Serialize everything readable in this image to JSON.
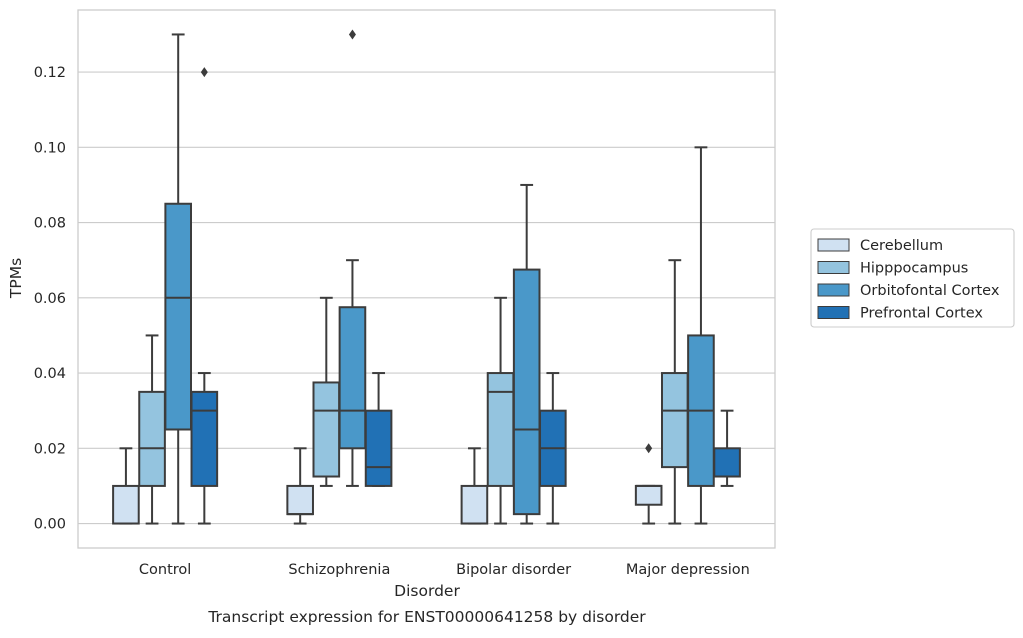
{
  "chart_data": {
    "type": "box",
    "title": "",
    "caption": "Transcript expression for ENST00000641258 by disorder",
    "xlabel": "Disorder",
    "ylabel": "TPMs",
    "ylim": [
      -0.0065,
      0.1365
    ],
    "yticks": [
      "0.00",
      "0.02",
      "0.04",
      "0.06",
      "0.08",
      "0.10",
      "0.12"
    ],
    "ytick_values": [
      0,
      0.02,
      0.04,
      0.06,
      0.08,
      0.1,
      0.12
    ],
    "grid": "horizontal",
    "legend_position": "right",
    "categories": [
      "Control",
      "Schizophrenia",
      "Bipolar disorder",
      "Major depression"
    ],
    "series": [
      {
        "name": "Cerebellum",
        "color": "#d0e1f2",
        "boxes": [
          {
            "whislo": 0.0,
            "q1": 0.0,
            "med": 0.0,
            "q3": 0.01,
            "whishi": 0.02,
            "fliers": []
          },
          {
            "whislo": 0.0,
            "q1": 0.0025,
            "med": 0.0025,
            "q3": 0.01,
            "whishi": 0.02,
            "fliers": []
          },
          {
            "whislo": 0.0,
            "q1": 0.0,
            "med": 0.0,
            "q3": 0.01,
            "whishi": 0.02,
            "fliers": []
          },
          {
            "whislo": 0.0,
            "q1": 0.005,
            "med": 0.01,
            "q3": 0.01,
            "whishi": 0.01,
            "fliers": [
              0.02
            ]
          }
        ]
      },
      {
        "name": "Hipppocampus",
        "color": "#94c4df",
        "boxes": [
          {
            "whislo": 0.0,
            "q1": 0.01,
            "med": 0.02,
            "q3": 0.035,
            "whishi": 0.05,
            "fliers": []
          },
          {
            "whislo": 0.01,
            "q1": 0.0125,
            "med": 0.03,
            "q3": 0.0375,
            "whishi": 0.06,
            "fliers": []
          },
          {
            "whislo": 0.0,
            "q1": 0.01,
            "med": 0.035,
            "q3": 0.04,
            "whishi": 0.06,
            "fliers": []
          },
          {
            "whislo": 0.0,
            "q1": 0.015,
            "med": 0.03,
            "q3": 0.04,
            "whishi": 0.07,
            "fliers": []
          }
        ]
      },
      {
        "name": "Orbitofontal Cortex",
        "color": "#4a98c9",
        "boxes": [
          {
            "whislo": 0.0,
            "q1": 0.025,
            "med": 0.06,
            "q3": 0.085,
            "whishi": 0.13,
            "fliers": []
          },
          {
            "whislo": 0.01,
            "q1": 0.02,
            "med": 0.03,
            "q3": 0.0575,
            "whishi": 0.07,
            "fliers": [
              0.13
            ]
          },
          {
            "whislo": 0.0,
            "q1": 0.0025,
            "med": 0.025,
            "q3": 0.0675,
            "whishi": 0.09,
            "fliers": []
          },
          {
            "whislo": 0.0,
            "q1": 0.01,
            "med": 0.03,
            "q3": 0.05,
            "whishi": 0.1,
            "fliers": []
          }
        ]
      },
      {
        "name": "Prefrontal Cortex",
        "color": "#2171b5",
        "boxes": [
          {
            "whislo": 0.0,
            "q1": 0.01,
            "med": 0.03,
            "q3": 0.035,
            "whishi": 0.04,
            "fliers": [
              0.12
            ]
          },
          {
            "whislo": 0.01,
            "q1": 0.01,
            "med": 0.015,
            "q3": 0.03,
            "whishi": 0.04,
            "fliers": []
          },
          {
            "whislo": 0.0,
            "q1": 0.01,
            "med": 0.02,
            "q3": 0.03,
            "whishi": 0.04,
            "fliers": []
          },
          {
            "whislo": 0.01,
            "q1": 0.0125,
            "med": 0.0125,
            "q3": 0.02,
            "whishi": 0.03,
            "fliers": []
          }
        ]
      }
    ]
  }
}
